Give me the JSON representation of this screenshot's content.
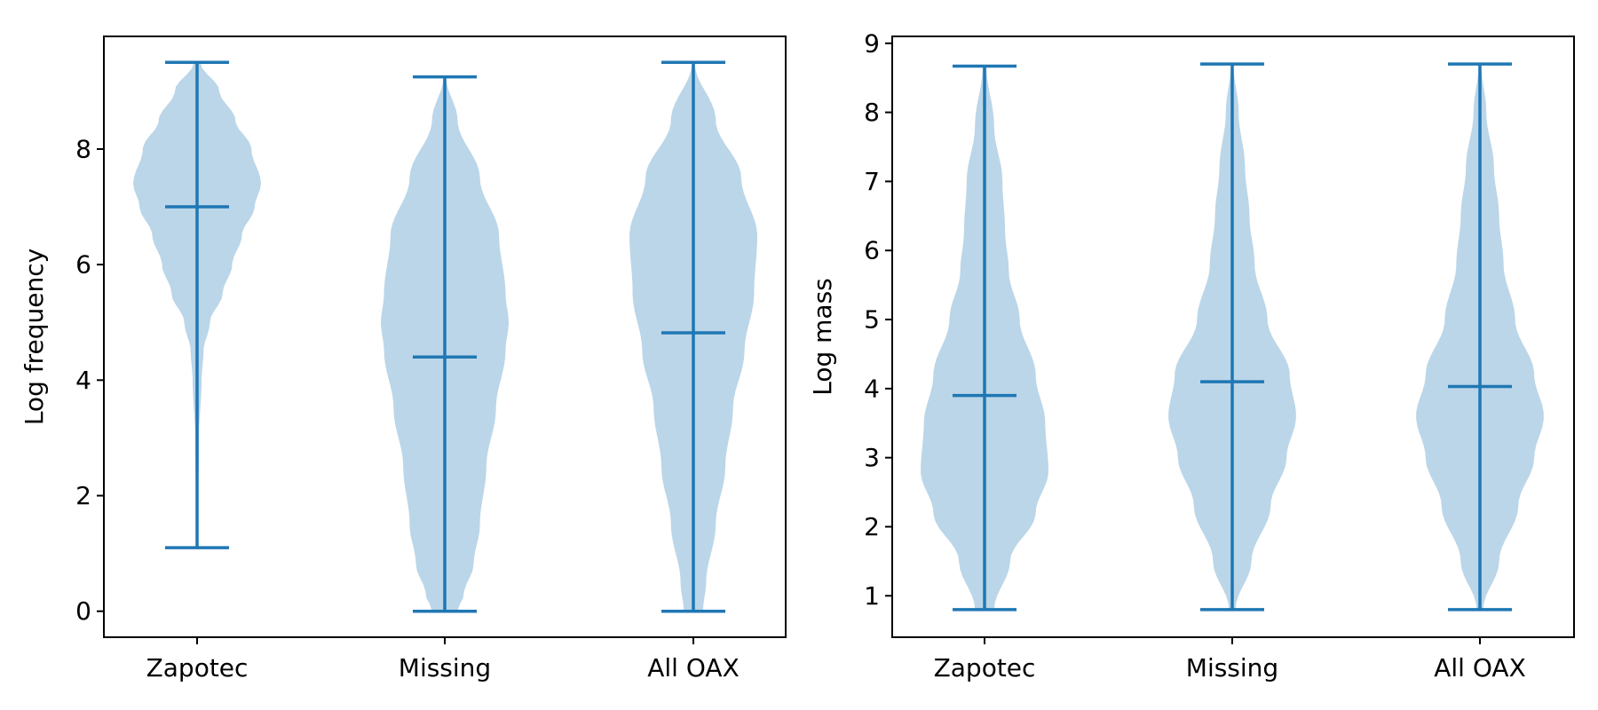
{
  "colors": {
    "body_fill": "#1f77b4",
    "body_opacity": 0.3,
    "line": "#1f77b4",
    "axes": "#000000"
  },
  "chart_data": [
    {
      "type": "violin",
      "ylabel": "Log frequency",
      "ylim": [
        -0.45,
        9.95
      ],
      "yticks": [
        0,
        2,
        4,
        6,
        8
      ],
      "categories": [
        "Zapotec",
        "Missing",
        "All OAX"
      ],
      "series": [
        {
          "category": "Zapotec",
          "min": 1.1,
          "median": 7.0,
          "max": 9.5,
          "density": [
            [
              1.1,
              0.01
            ],
            [
              2.0,
              0.02
            ],
            [
              3.0,
              0.03
            ],
            [
              4.0,
              0.07
            ],
            [
              4.5,
              0.1
            ],
            [
              5.0,
              0.2
            ],
            [
              5.5,
              0.4
            ],
            [
              6.0,
              0.55
            ],
            [
              6.5,
              0.7
            ],
            [
              7.0,
              0.9
            ],
            [
              7.4,
              1.0
            ],
            [
              8.0,
              0.85
            ],
            [
              8.5,
              0.6
            ],
            [
              9.0,
              0.35
            ],
            [
              9.5,
              0.05
            ]
          ]
        },
        {
          "category": "Missing",
          "min": 0.0,
          "median": 4.4,
          "max": 9.25,
          "density": [
            [
              0.0,
              0.2
            ],
            [
              0.3,
              0.3
            ],
            [
              0.8,
              0.45
            ],
            [
              1.5,
              0.55
            ],
            [
              2.5,
              0.65
            ],
            [
              3.5,
              0.8
            ],
            [
              4.5,
              0.95
            ],
            [
              5.0,
              1.0
            ],
            [
              5.5,
              0.95
            ],
            [
              6.5,
              0.85
            ],
            [
              7.5,
              0.55
            ],
            [
              8.5,
              0.2
            ],
            [
              9.25,
              0.02
            ]
          ]
        },
        {
          "category": "All OAX",
          "min": 0.0,
          "median": 4.82,
          "max": 9.5,
          "density": [
            [
              0.0,
              0.15
            ],
            [
              0.5,
              0.2
            ],
            [
              1.5,
              0.35
            ],
            [
              2.5,
              0.5
            ],
            [
              3.5,
              0.62
            ],
            [
              4.5,
              0.8
            ],
            [
              5.5,
              0.95
            ],
            [
              6.5,
              1.0
            ],
            [
              7.5,
              0.75
            ],
            [
              8.5,
              0.35
            ],
            [
              9.5,
              0.02
            ]
          ]
        }
      ]
    },
    {
      "type": "violin",
      "ylabel": "Log mass",
      "ylim": [
        0.4,
        9.1
      ],
      "yticks": [
        1,
        2,
        3,
        4,
        5,
        6,
        7,
        8,
        9
      ],
      "categories": [
        "Zapotec",
        "Missing",
        "All OAX"
      ],
      "series": [
        {
          "category": "Zapotec",
          "min": 0.8,
          "median": 3.9,
          "max": 8.67,
          "density": [
            [
              0.8,
              0.15
            ],
            [
              1.5,
              0.4
            ],
            [
              2.2,
              0.8
            ],
            [
              2.8,
              1.0
            ],
            [
              3.5,
              0.95
            ],
            [
              4.2,
              0.8
            ],
            [
              5.0,
              0.55
            ],
            [
              5.7,
              0.38
            ],
            [
              6.3,
              0.32
            ],
            [
              7.0,
              0.28
            ],
            [
              7.8,
              0.15
            ],
            [
              8.67,
              0.03
            ]
          ]
        },
        {
          "category": "Missing",
          "min": 0.8,
          "median": 4.1,
          "max": 8.7,
          "density": [
            [
              0.8,
              0.05
            ],
            [
              1.5,
              0.3
            ],
            [
              2.3,
              0.6
            ],
            [
              3.0,
              0.85
            ],
            [
              3.6,
              1.0
            ],
            [
              4.2,
              0.9
            ],
            [
              5.0,
              0.55
            ],
            [
              5.8,
              0.35
            ],
            [
              6.5,
              0.27
            ],
            [
              7.2,
              0.2
            ],
            [
              8.0,
              0.1
            ],
            [
              8.7,
              0.02
            ]
          ]
        },
        {
          "category": "All OAX",
          "min": 0.8,
          "median": 4.03,
          "max": 8.7,
          "density": [
            [
              0.8,
              0.05
            ],
            [
              1.5,
              0.3
            ],
            [
              2.3,
              0.6
            ],
            [
              3.0,
              0.85
            ],
            [
              3.6,
              1.0
            ],
            [
              4.2,
              0.85
            ],
            [
              5.0,
              0.55
            ],
            [
              5.8,
              0.37
            ],
            [
              6.5,
              0.3
            ],
            [
              7.2,
              0.22
            ],
            [
              8.0,
              0.1
            ],
            [
              8.7,
              0.02
            ]
          ]
        }
      ]
    }
  ]
}
